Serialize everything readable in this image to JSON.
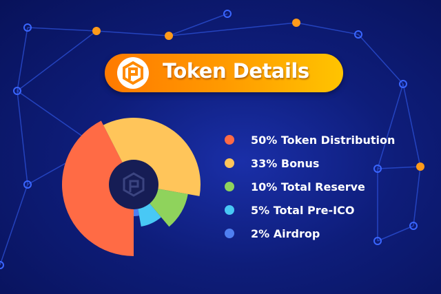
{
  "header": {
    "title": "Token Details",
    "logo": "p-hexagon-logo"
  },
  "colors": {
    "background": "#0e1d7a",
    "banner_start": "#ff7a00",
    "banner_end": "#ffc400",
    "center": "#161d55"
  },
  "chart_data": {
    "type": "pie",
    "title": "Token Details",
    "categories": [
      "Token Distribution",
      "Bonus",
      "Total Reserve",
      "Total Pre-ICO",
      "Airdrop"
    ],
    "values": [
      50,
      33,
      10,
      5,
      2
    ],
    "colors": [
      "#ff6b45",
      "#ffc55a",
      "#8fd35c",
      "#48c8f5",
      "#4f7ff0"
    ],
    "legend_position": "right",
    "legend": [
      "50% Token Distribution",
      "33% Bonus",
      "10% Total Reserve",
      "5% Total Pre-ICO",
      "2% Airdrop"
    ]
  }
}
